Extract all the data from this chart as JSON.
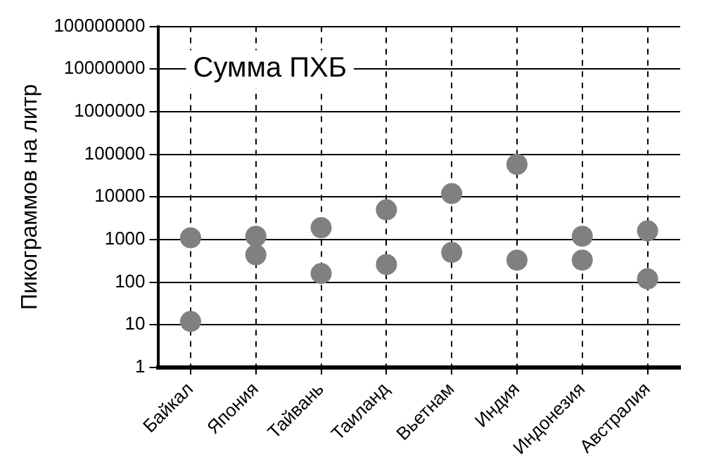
{
  "chart_data": {
    "type": "scatter",
    "title": "Сумма ПХБ",
    "ylabel": "Пикограммов на литр",
    "categories": [
      "Байкал",
      "Япония",
      "Тайвань",
      "Таиланд",
      "Вьетнам",
      "Индия",
      "Индонезия",
      "Австралия"
    ],
    "series": [
      {
        "color": "#808080",
        "values": [
          1100,
          1200,
          1900,
          5000,
          12000,
          58000,
          1200,
          1600
        ]
      },
      {
        "color": "#808080",
        "values": [
          12,
          440,
          160,
          260,
          500,
          330,
          330,
          120
        ]
      }
    ],
    "log": true,
    "ylim": [
      1,
      100000000
    ],
    "yticks": [
      1,
      10,
      100,
      1000,
      10000,
      100000,
      1000000,
      10000000,
      100000000
    ],
    "grid": true,
    "marker": "circle",
    "legend": false
  }
}
